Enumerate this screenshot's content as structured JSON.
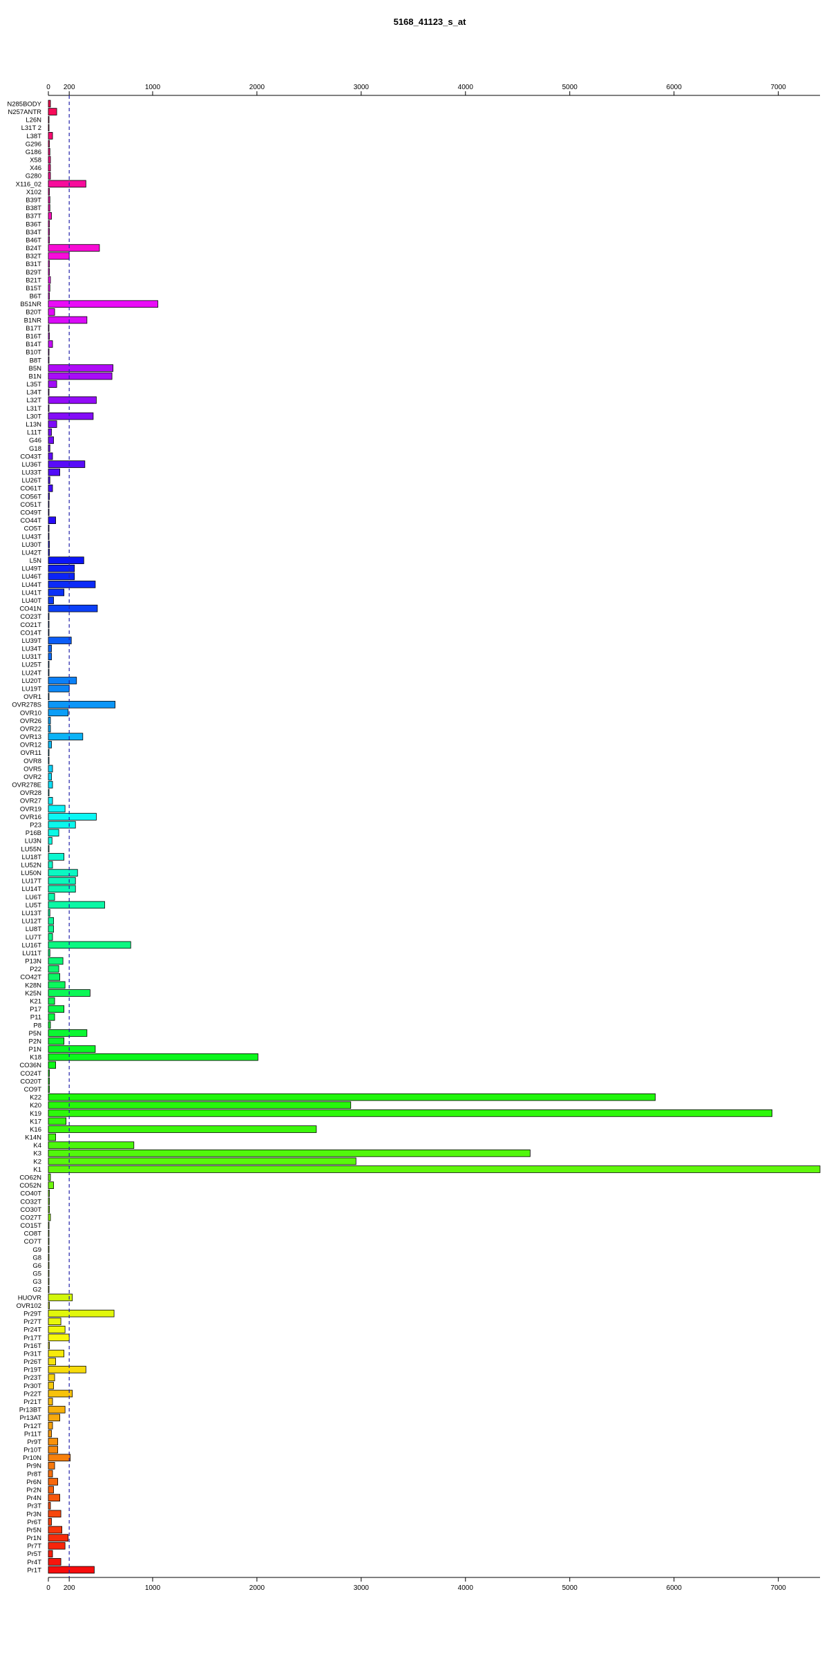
{
  "chart_data": {
    "type": "bar",
    "orientation": "horizontal",
    "title": "5168_41123_s_at",
    "xlabel": "",
    "ylabel": "",
    "xlim": [
      0,
      7400
    ],
    "x_ticks": [
      0,
      200,
      1000,
      2000,
      3000,
      4000,
      5000,
      6000,
      7000
    ],
    "reference_line": 200,
    "reference_line_style": "dashed blue",
    "axes": "top and bottom",
    "grid": false,
    "legend": "none",
    "bar_outline_color": "#000000",
    "color_scheme": "rainbow by category order (red to magenta to blue to cyan to green to yellow to orange to red)",
    "categories": [
      "N285BODY",
      "N257ANTR",
      "L26N",
      "L31T 2",
      "L38T",
      "G296",
      "G186",
      "X58",
      "X46",
      "G280",
      "X116_02",
      "X102",
      "B39T",
      "B38T",
      "B37T",
      "B36T",
      "B34T",
      "B46T",
      "B24T",
      "B32T",
      "B31T",
      "B29T",
      "B21T",
      "B15T",
      "B6T",
      "B51NR",
      "B20T",
      "B1NR",
      "B17T",
      "B16T",
      "B14T",
      "B10T",
      "B8T",
      "B5N",
      "B1N",
      "L35T",
      "L34T",
      "L32T",
      "L31T",
      "L30T",
      "L13N",
      "L11T",
      "G46",
      "G18",
      "CO43T",
      "LU36T",
      "LU33T",
      "LU26T",
      "CO61T",
      "CO56T",
      "CO51T",
      "CO49T",
      "CO44T",
      "CO5T",
      "LU43T",
      "LU30T",
      "LU42T",
      "L5N",
      "LU49T",
      "LU46T",
      "LU44T",
      "LU41T",
      "LU40T",
      "CO41N",
      "CO23T",
      "CO21T",
      "CO14T",
      "LU39T",
      "LU34T",
      "LU31T",
      "LU25T",
      "LU24T",
      "LU20T",
      "LU19T",
      "OVR1",
      "OVR278S",
      "OVR10",
      "OVR26",
      "OVR22",
      "OVR13",
      "OVR12",
      "OVR11",
      "OVR8",
      "OVR5",
      "OVR2",
      "OVR278E",
      "OVR28",
      "OVR27",
      "OVR19",
      "OVR16",
      "P23",
      "P16B",
      "LU3N",
      "LU55N",
      "LU18T",
      "LU52N",
      "LU50N",
      "LU17T",
      "LU14T",
      "LU6T",
      "LU5T",
      "LU13T",
      "LU12T",
      "LU8T",
      "LU7T",
      "LU16T",
      "LU11T",
      "P13N",
      "P22",
      "CO42T",
      "K28N",
      "K25N",
      "K21",
      "P17",
      "P11",
      "P8",
      "P5N",
      "P2N",
      "P1N",
      "K18",
      "CO36N",
      "CO24T",
      "CO20T",
      "CO9T",
      "K22",
      "K20",
      "K19",
      "K17",
      "K16",
      "K14N",
      "K4",
      "K3",
      "K2",
      "K1",
      "CO62N",
      "CO52N",
      "CO40T",
      "CO32T",
      "CO30T",
      "CO27T",
      "CO15T",
      "CO8T",
      "CO7T",
      "G9",
      "G8",
      "G6",
      "G5",
      "G3",
      "G2",
      "HUOVR",
      "OVR102",
      "Pr29T",
      "Pr27T",
      "Pr24T",
      "Pr17T",
      "Pr16T",
      "Pr31T",
      "Pr26T",
      "Pr19T",
      "Pr23T",
      "Pr30T",
      "Pr22T",
      "Pr21T",
      "Pr13BT",
      "Pr13AT",
      "Pr12T",
      "Pr11T",
      "Pr9T",
      "Pr10T",
      "Pr10N",
      "Pr9N",
      "Pr8T",
      "Pr6N",
      "Pr2N",
      "Pr4N",
      "Pr3T",
      "Pr3N",
      "Pr6T",
      "Pr5N",
      "Pr1N",
      "Pr7T",
      "Pr5T",
      "Pr4T",
      "Pr1T"
    ],
    "values": [
      20,
      80,
      5,
      5,
      40,
      10,
      15,
      20,
      20,
      20,
      360,
      10,
      15,
      15,
      30,
      10,
      10,
      10,
      490,
      200,
      10,
      10,
      20,
      15,
      10,
      1050,
      60,
      370,
      5,
      10,
      40,
      5,
      5,
      620,
      610,
      80,
      5,
      460,
      5,
      430,
      80,
      30,
      50,
      15,
      40,
      350,
      110,
      15,
      40,
      10,
      5,
      5,
      70,
      5,
      5,
      10,
      10,
      340,
      250,
      250,
      450,
      150,
      50,
      470,
      5,
      5,
      5,
      220,
      30,
      30,
      5,
      5,
      270,
      200,
      5,
      640,
      190,
      20,
      20,
      330,
      30,
      5,
      5,
      40,
      30,
      40,
      5,
      40,
      160,
      460,
      260,
      100,
      35,
      5,
      150,
      40,
      280,
      260,
      260,
      60,
      540,
      15,
      50,
      50,
      40,
      790,
      15,
      140,
      100,
      110,
      160,
      400,
      60,
      150,
      60,
      20,
      370,
      150,
      450,
      2010,
      70,
      10,
      10,
      10,
      5820,
      2900,
      6940,
      170,
      2570,
      70,
      820,
      4620,
      2950,
      7400,
      20,
      50,
      10,
      10,
      10,
      20,
      5,
      5,
      5,
      5,
      5,
      5,
      5,
      5,
      5,
      230,
      10,
      630,
      120,
      160,
      200,
      10,
      150,
      70,
      360,
      60,
      50,
      230,
      40,
      160,
      110,
      40,
      30,
      90,
      90,
      210,
      60,
      40,
      90,
      50,
      110,
      20,
      120,
      30,
      130,
      190,
      160,
      40,
      120,
      440
    ]
  }
}
